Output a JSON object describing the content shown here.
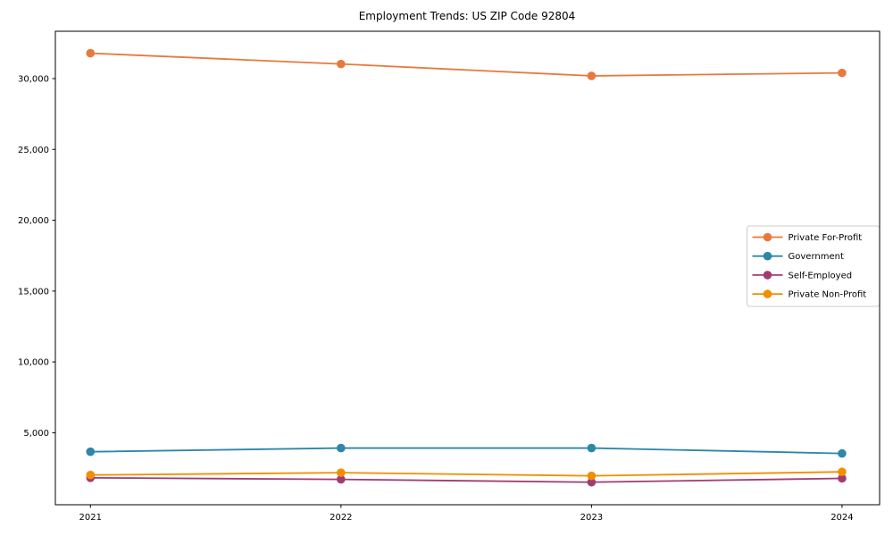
{
  "title": "Employment Trends: US ZIP Code 92804",
  "chart_data": {
    "type": "line",
    "title": "Employment Trends: US ZIP Code 92804",
    "xlabel": "",
    "ylabel": "",
    "x": [
      2021,
      2022,
      2023,
      2024
    ],
    "x_tick_labels": [
      "2021",
      "2022",
      "2023",
      "2024"
    ],
    "y_ticks": [
      5000,
      10000,
      15000,
      20000,
      25000,
      30000
    ],
    "y_tick_labels": [
      "5,000",
      "10,000",
      "15,000",
      "20,000",
      "25,000",
      "30,000"
    ],
    "xlim": [
      2020.86,
      2024.15
    ],
    "ylim": [
      -80,
      33340
    ],
    "grid": false,
    "legend_position": "center right",
    "marker": "circle",
    "series": [
      {
        "name": "Private For-Profit",
        "color": "#E8793E",
        "values": [
          31790,
          31030,
          30190,
          30400
        ]
      },
      {
        "name": "Government",
        "color": "#2E86AB",
        "values": [
          3660,
          3920,
          3920,
          3540
        ]
      },
      {
        "name": "Self-Employed",
        "color": "#A23B72",
        "values": [
          1820,
          1710,
          1510,
          1780
        ]
      },
      {
        "name": "Private Non-Profit",
        "color": "#F18F01",
        "values": [
          2020,
          2180,
          1960,
          2240
        ]
      }
    ],
    "legend_border_color": "#cccccc",
    "axis_color": "#000000"
  }
}
